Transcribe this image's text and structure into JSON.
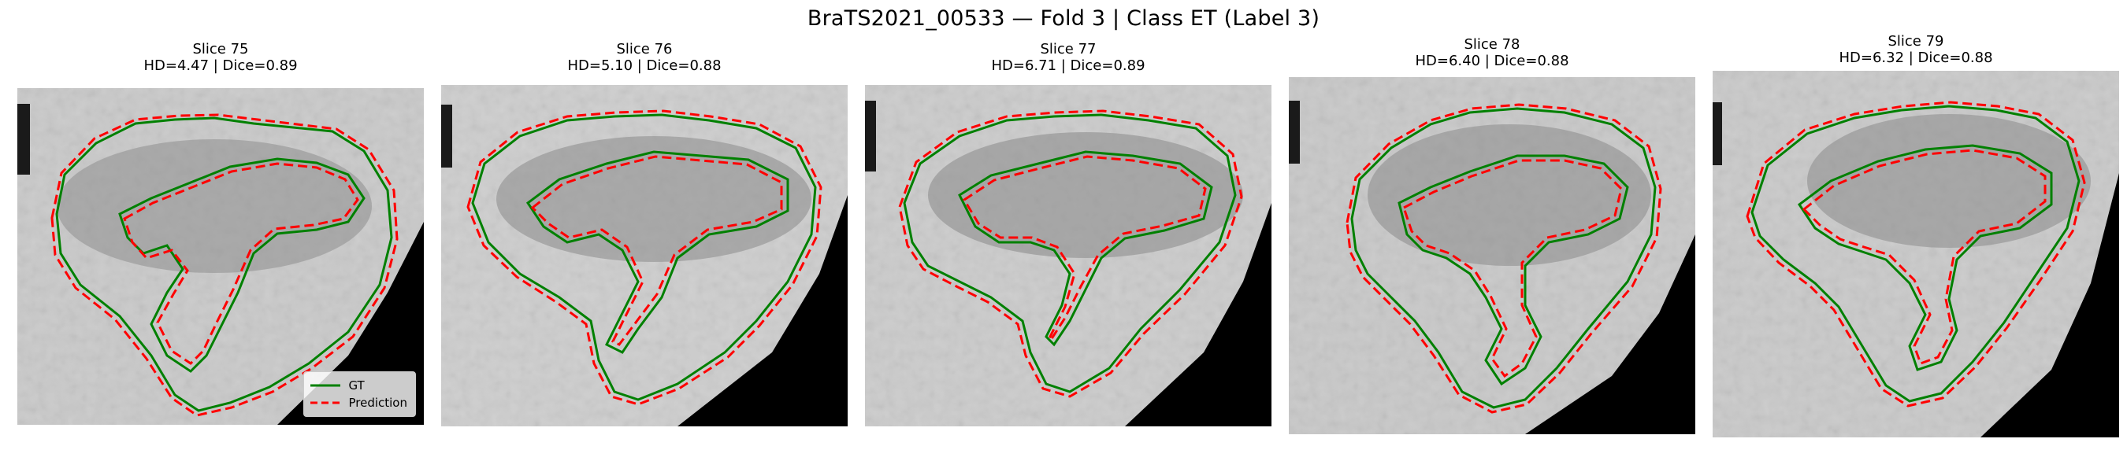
{
  "figure": {
    "title": "BraTS2021_00533 — Fold 3 | Class ET (Label 3)"
  },
  "legend": {
    "gt_label": "GT",
    "pred_label": "Prediction"
  },
  "colors": {
    "gt": "#008000",
    "prediction": "#ff0000"
  },
  "panels": [
    {
      "title": "Slice 75",
      "metrics": "HD=4.47 | Dice=0.89"
    },
    {
      "title": "Slice 76",
      "metrics": "HD=5.10 | Dice=0.88"
    },
    {
      "title": "Slice 77",
      "metrics": "HD=6.71 | Dice=0.89"
    },
    {
      "title": "Slice 78",
      "metrics": "HD=6.40 | Dice=0.88"
    },
    {
      "title": "Slice 79",
      "metrics": "HD=6.32 | Dice=0.88"
    }
  ]
}
